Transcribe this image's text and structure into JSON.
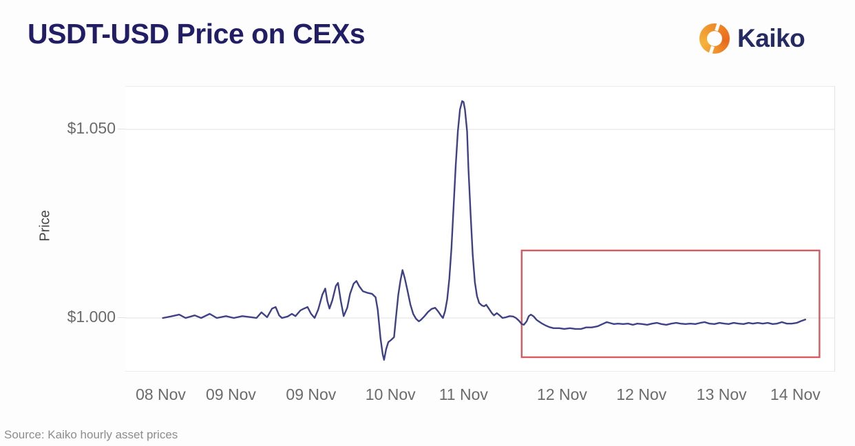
{
  "header": {
    "title": "USDT-USD Price on CEXs",
    "brand": "Kaiko",
    "brand_colors": {
      "icon_orange": "#ef8123",
      "icon_gold": "#f6b23a",
      "wordmark_navy": "#252a63"
    }
  },
  "footer": {
    "source": "Source: Kaiko hourly asset prices"
  },
  "chart_data": {
    "type": "line",
    "title": "USDT-USD Price on CEXs",
    "xlabel": "",
    "ylabel": "Price",
    "legend": "none",
    "grid": "horizontal-only",
    "ylim": [
      0.986,
      1.061
    ],
    "x_unit": "percent of plot width along time axis (08 Nov - 14 Nov)",
    "y_axis": {
      "ticks": [
        {
          "label": "$1.050",
          "value": 1.05
        },
        {
          "label": "$1.000",
          "value": 1.0
        }
      ]
    },
    "x_axis": {
      "ticks": [
        {
          "label": "08 Nov",
          "pct": 5.0
        },
        {
          "label": "09 Nov",
          "pct": 14.9
        },
        {
          "label": "09 Nov",
          "pct": 26.2
        },
        {
          "label": "10 Nov",
          "pct": 37.4
        },
        {
          "label": "11 Nov",
          "pct": 47.7
        },
        {
          "label": "12 Nov",
          "pct": 61.6
        },
        {
          "label": "12 Nov",
          "pct": 72.8
        },
        {
          "label": "13 Nov",
          "pct": 84.1
        },
        {
          "label": "14 Nov",
          "pct": 94.5
        }
      ]
    },
    "series": [
      {
        "name": "USDT-USD hourly price",
        "color": "#3f4186",
        "points": [
          [
            5.3,
            1.0
          ],
          [
            6.4,
            1.0004
          ],
          [
            7.6,
            1.0009
          ],
          [
            8.5,
            1.0
          ],
          [
            9.8,
            1.0007
          ],
          [
            10.7,
            1.0
          ],
          [
            11.9,
            1.0011
          ],
          [
            12.9,
            1.0
          ],
          [
            14.2,
            1.0005
          ],
          [
            15.3,
            1.0
          ],
          [
            16.5,
            1.0005
          ],
          [
            17.8,
            1.0002
          ],
          [
            18.5,
            1.0
          ],
          [
            19.2,
            1.0015
          ],
          [
            20.0,
            1.0002
          ],
          [
            20.7,
            1.0025
          ],
          [
            21.2,
            1.0029
          ],
          [
            21.7,
            1.0007
          ],
          [
            22.1,
            1.0
          ],
          [
            22.9,
            1.0004
          ],
          [
            23.5,
            1.0011
          ],
          [
            24.0,
            1.0005
          ],
          [
            24.7,
            1.002
          ],
          [
            25.1,
            1.0024
          ],
          [
            25.7,
            1.0029
          ],
          [
            26.2,
            1.0011
          ],
          [
            26.7,
            1.0
          ],
          [
            27.2,
            1.0022
          ],
          [
            27.8,
            1.0062
          ],
          [
            28.2,
            1.0078
          ],
          [
            28.5,
            1.0045
          ],
          [
            28.8,
            1.0025
          ],
          [
            29.2,
            1.0047
          ],
          [
            29.7,
            1.0085
          ],
          [
            30.0,
            1.0093
          ],
          [
            30.4,
            1.0045
          ],
          [
            30.8,
            1.0005
          ],
          [
            31.3,
            1.0027
          ],
          [
            31.7,
            1.0064
          ],
          [
            32.2,
            1.0091
          ],
          [
            32.6,
            1.0098
          ],
          [
            33.0,
            1.0084
          ],
          [
            33.5,
            1.0071
          ],
          [
            34.1,
            1.0067
          ],
          [
            34.8,
            1.0064
          ],
          [
            35.3,
            1.0055
          ],
          [
            35.6,
            1.0022
          ],
          [
            36.0,
            0.9945
          ],
          [
            36.3,
            0.9904
          ],
          [
            36.5,
            0.9889
          ],
          [
            36.8,
            0.9918
          ],
          [
            37.1,
            0.9936
          ],
          [
            37.5,
            0.9942
          ],
          [
            37.9,
            0.9949
          ],
          [
            38.2,
            1.0007
          ],
          [
            38.5,
            1.0062
          ],
          [
            38.8,
            1.0098
          ],
          [
            39.1,
            1.0127
          ],
          [
            39.4,
            1.0107
          ],
          [
            39.8,
            1.0073
          ],
          [
            40.2,
            1.0036
          ],
          [
            40.6,
            1.0011
          ],
          [
            41.0,
            0.9998
          ],
          [
            41.4,
            0.9991
          ],
          [
            41.7,
            0.9995
          ],
          [
            42.2,
            1.0005
          ],
          [
            42.7,
            1.0016
          ],
          [
            43.2,
            1.0024
          ],
          [
            43.7,
            1.0027
          ],
          [
            44.1,
            1.0018
          ],
          [
            44.5,
            1.0007
          ],
          [
            44.8,
            1.0
          ],
          [
            45.1,
            1.0018
          ],
          [
            45.4,
            1.0049
          ],
          [
            45.7,
            1.0104
          ],
          [
            46.0,
            1.0185
          ],
          [
            46.3,
            1.0295
          ],
          [
            46.6,
            1.0404
          ],
          [
            46.9,
            1.0495
          ],
          [
            47.2,
            1.0553
          ],
          [
            47.5,
            1.0575
          ],
          [
            47.7,
            1.0573
          ],
          [
            47.9,
            1.0553
          ],
          [
            48.2,
            1.0495
          ],
          [
            48.4,
            1.0395
          ],
          [
            48.7,
            1.0276
          ],
          [
            49.0,
            1.0167
          ],
          [
            49.3,
            1.0095
          ],
          [
            49.6,
            1.0058
          ],
          [
            49.9,
            1.004
          ],
          [
            50.3,
            1.0033
          ],
          [
            50.6,
            1.0031
          ],
          [
            50.9,
            1.0035
          ],
          [
            51.3,
            1.0024
          ],
          [
            51.7,
            1.0013
          ],
          [
            52.0,
            1.0007
          ],
          [
            52.4,
            1.0013
          ],
          [
            52.8,
            1.0007
          ],
          [
            53.2,
            1.0
          ],
          [
            53.7,
            1.0002
          ],
          [
            54.2,
            1.0005
          ],
          [
            54.7,
            1.0004
          ],
          [
            55.1,
            1.0
          ],
          [
            55.5,
            0.9993
          ],
          [
            55.9,
            0.9984
          ],
          [
            56.2,
            0.9982
          ],
          [
            56.6,
            0.9991
          ],
          [
            56.9,
            1.0005
          ],
          [
            57.2,
            1.0009
          ],
          [
            57.6,
            1.0004
          ],
          [
            58.0,
            0.9995
          ],
          [
            58.3,
            0.9991
          ],
          [
            58.8,
            0.9985
          ],
          [
            59.3,
            0.998
          ],
          [
            59.8,
            0.9976
          ],
          [
            60.4,
            0.9973
          ],
          [
            61.2,
            0.9973
          ],
          [
            61.9,
            0.9971
          ],
          [
            62.7,
            0.9973
          ],
          [
            63.5,
            0.9971
          ],
          [
            64.3,
            0.9971
          ],
          [
            65.0,
            0.9975
          ],
          [
            65.8,
            0.9975
          ],
          [
            66.6,
            0.9978
          ],
          [
            67.3,
            0.9984
          ],
          [
            67.9,
            0.9989
          ],
          [
            68.3,
            0.9987
          ],
          [
            68.9,
            0.9984
          ],
          [
            69.5,
            0.9985
          ],
          [
            70.2,
            0.9984
          ],
          [
            70.9,
            0.9985
          ],
          [
            71.6,
            0.9982
          ],
          [
            72.2,
            0.9985
          ],
          [
            72.9,
            0.9984
          ],
          [
            73.6,
            0.9982
          ],
          [
            74.3,
            0.9985
          ],
          [
            75.0,
            0.9987
          ],
          [
            75.6,
            0.9984
          ],
          [
            76.3,
            0.9982
          ],
          [
            77.0,
            0.9985
          ],
          [
            77.7,
            0.9987
          ],
          [
            78.3,
            0.9985
          ],
          [
            79.0,
            0.9984
          ],
          [
            79.7,
            0.9985
          ],
          [
            80.4,
            0.9984
          ],
          [
            81.1,
            0.9987
          ],
          [
            81.7,
            0.9989
          ],
          [
            82.4,
            0.9985
          ],
          [
            83.1,
            0.9984
          ],
          [
            83.8,
            0.9987
          ],
          [
            84.5,
            0.9985
          ],
          [
            85.1,
            0.9984
          ],
          [
            85.8,
            0.9987
          ],
          [
            86.5,
            0.9985
          ],
          [
            87.2,
            0.9984
          ],
          [
            87.9,
            0.9987
          ],
          [
            88.5,
            0.9985
          ],
          [
            89.2,
            0.9987
          ],
          [
            89.9,
            0.9985
          ],
          [
            90.6,
            0.9987
          ],
          [
            91.3,
            0.9984
          ],
          [
            91.9,
            0.9985
          ],
          [
            92.6,
            0.9989
          ],
          [
            93.3,
            0.9985
          ],
          [
            94.0,
            0.9985
          ],
          [
            94.7,
            0.9987
          ],
          [
            95.2,
            0.9991
          ],
          [
            95.9,
            0.9996
          ]
        ]
      }
    ],
    "annotations": {
      "highlight_box": {
        "color": "#d65a60",
        "x_start_pct": 55.9,
        "x_end_pct": 97.9,
        "price_top": 1.0179,
        "price_bottom": 0.9896
      }
    }
  }
}
